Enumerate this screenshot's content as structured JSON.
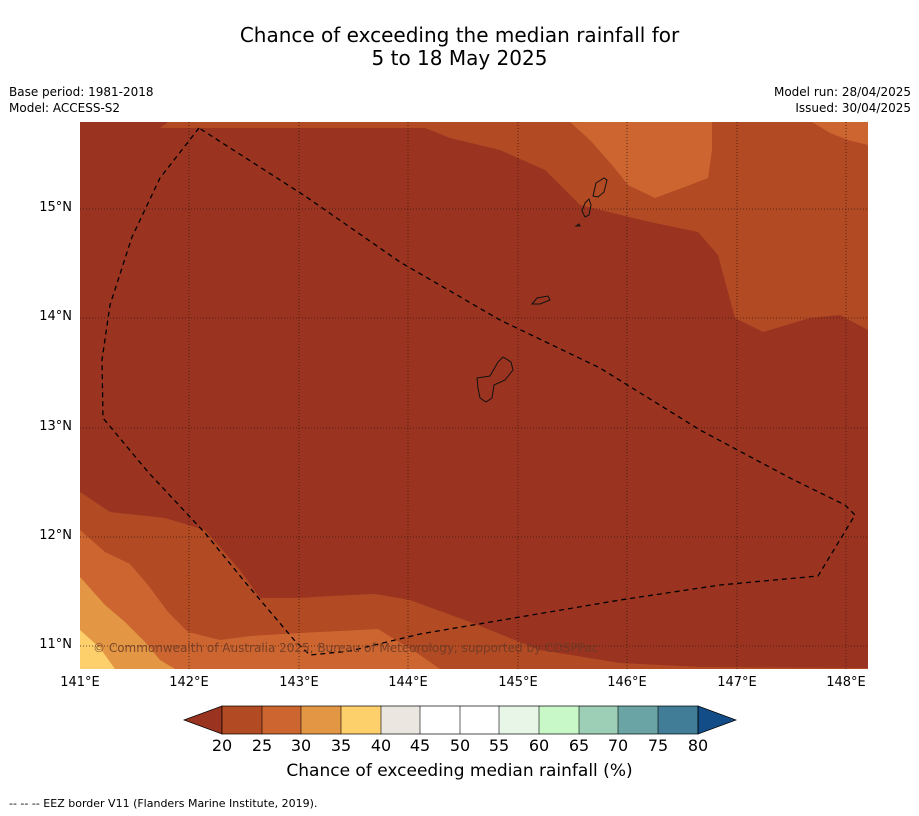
{
  "title_line1": "Chance of exceeding the median rainfall for",
  "title_line2": "5 to 18 May 2025",
  "meta": {
    "base_period": "Base period: 1981-2018",
    "model": "Model: ACCESS-S2",
    "model_run": "Model run: 28/04/2025",
    "issued": "Issued: 30/04/2025"
  },
  "map": {
    "lat_labels": [
      "15°N",
      "14°N",
      "13°N",
      "12°N",
      "11°N"
    ],
    "lon_labels": [
      "141°E",
      "142°E",
      "143°E",
      "144°E",
      "145°E",
      "146°E",
      "147°E",
      "148°E"
    ],
    "copyright": "© Commonwealth of Australia 2025, Bureau of Meteorology, supported by COSPPac"
  },
  "colorbar": {
    "title": "Chance of exceeding median rainfall (%)",
    "ticks": [
      "20",
      "25",
      "30",
      "35",
      "40",
      "45",
      "50",
      "55",
      "60",
      "65",
      "70",
      "75",
      "80"
    ],
    "colors": [
      "#9a3420",
      "#b24a24",
      "#cd6530",
      "#e39744",
      "#fdd06c",
      "#ebe7e0",
      "#ffffff",
      "#ffffff",
      "#e8f6e8",
      "#c8f8c8",
      "#9ccfb6",
      "#6aa4a4",
      "#427d98",
      "#124d87"
    ]
  },
  "footnote": "-- -- -- EEZ border V11 (Flanders Marine Institute, 2019)."
}
